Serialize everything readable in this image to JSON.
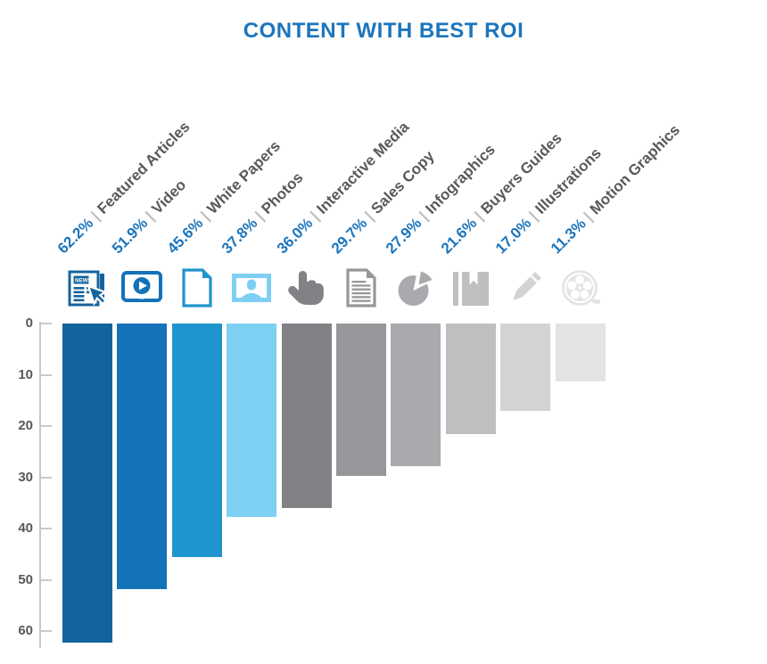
{
  "title": "CONTENT WITH BEST ROI",
  "chart_data": {
    "type": "bar",
    "title": "CONTENT WITH BEST ROI",
    "orientation": "columns hanging downward from a top zero baseline",
    "xlabel": "",
    "ylabel": "",
    "ylim": [
      0,
      60
    ],
    "yticks": [
      0,
      10,
      20,
      30,
      40,
      50,
      60
    ],
    "grid": false,
    "legend": "none",
    "separator": "|",
    "news_label": "NEWS",
    "categories": [
      "Featured Articles",
      "Video",
      "White Papers",
      "Photos",
      "Interactive Media",
      "Sales Copy",
      "Infographics",
      "Buyers Guides",
      "Illustrations",
      "Motion Graphics"
    ],
    "values": [
      62.2,
      51.9,
      45.6,
      37.8,
      36.0,
      29.7,
      27.9,
      21.6,
      17.0,
      11.3
    ],
    "value_labels": [
      "62.2%",
      "51.9%",
      "45.6%",
      "37.8%",
      "36.0%",
      "29.7%",
      "27.9%",
      "21.6%",
      "17.0%",
      "11.3%"
    ],
    "bar_colors": [
      "#15639c",
      "#1472b9",
      "#2094ce",
      "#7dd0f2",
      "#808285",
      "#96979a",
      "#a8aaad",
      "#bdbfc1",
      "#d1d3d4",
      "#e2e3e5"
    ],
    "icons": [
      "newspaper-cursor-icon",
      "video-player-icon",
      "blank-document-icon",
      "photo-portrait-icon",
      "pointing-hand-icon",
      "text-document-icon",
      "pie-chart-icon",
      "book-bookmark-icon",
      "pencil-icon",
      "film-reel-icon"
    ]
  },
  "colors": {
    "title_text": "#1c75bc",
    "percent_text": "#1c75bc",
    "category_text": "#58595b",
    "separator_text": "#bcbec0",
    "axis_line": "#c8c9cb",
    "tick_label_text": "#57585a",
    "background": "#ffffff"
  }
}
